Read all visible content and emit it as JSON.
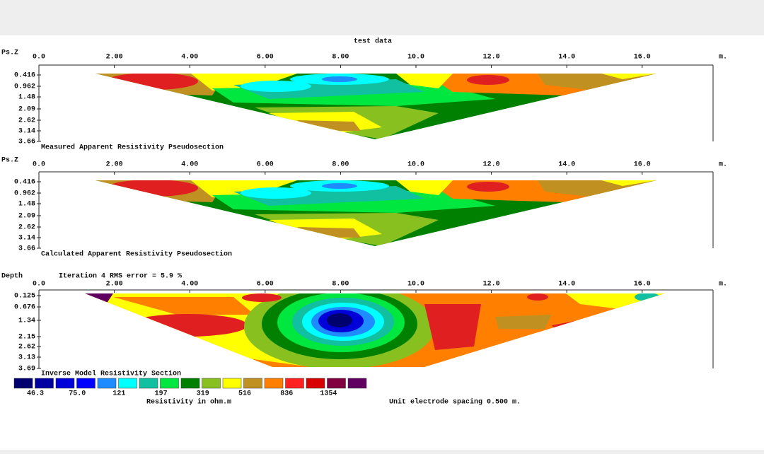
{
  "title": "test data",
  "panels": [
    {
      "axis_label": "Ps.Z",
      "x_ticks": [
        "0.0",
        "2.00",
        "4.00",
        "6.00",
        "8.00",
        "10.0",
        "12.0",
        "14.0",
        "16.0"
      ],
      "unit": "m.",
      "depth_ticks": [
        "0.416",
        "0.962",
        "1.48",
        "2.09",
        "2.62",
        "3.14",
        "3.66"
      ],
      "caption": "Measured Apparent Resistivity Pseudosection"
    },
    {
      "axis_label": "Ps.Z",
      "x_ticks": [
        "0.0",
        "2.00",
        "4.00",
        "6.00",
        "8.00",
        "10.0",
        "12.0",
        "14.0",
        "16.0"
      ],
      "unit": "m.",
      "depth_ticks": [
        "0.416",
        "0.962",
        "1.48",
        "2.09",
        "2.62",
        "3.14",
        "3.66"
      ],
      "caption": "Calculated Apparent Resistivity Pseudosection"
    },
    {
      "axis_label": "Depth",
      "note": "Iteration 4 RMS error = 5.9 %",
      "x_ticks": [
        "0.0",
        "2.00",
        "4.00",
        "6.00",
        "8.00",
        "10.0",
        "12.0",
        "14.0",
        "16.0"
      ],
      "unit": "m.",
      "depth_ticks": [
        "0.125",
        "0.676",
        "1.34",
        "2.15",
        "2.62",
        "3.13",
        "3.69"
      ],
      "caption": "Inverse Model Resistivity Section"
    }
  ],
  "legend": {
    "colors": [
      "#00006e",
      "#0000a0",
      "#0000d8",
      "#0000ff",
      "#1e8cff",
      "#00ffff",
      "#10c0a0",
      "#00e840",
      "#008000",
      "#88c020",
      "#ffff00",
      "#c09020",
      "#ff8000",
      "#ff2020",
      "#d80000",
      "#800040",
      "#600060"
    ],
    "labels": [
      "46.3",
      "75.0",
      "121",
      "197",
      "319",
      "516",
      "836",
      "1354"
    ],
    "title": "Resistivity in ohm.m"
  },
  "footer": "Unit electrode spacing 0.500 m."
}
